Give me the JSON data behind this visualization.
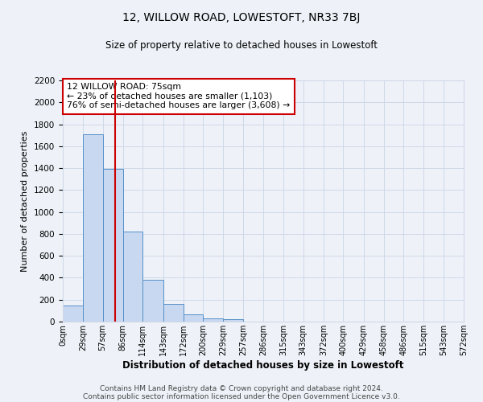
{
  "title": "12, WILLOW ROAD, LOWESTOFT, NR33 7BJ",
  "subtitle": "Size of property relative to detached houses in Lowestoft",
  "xlabel": "Distribution of detached houses by size in Lowestoft",
  "ylabel": "Number of detached properties",
  "bin_edges": [
    0,
    29,
    57,
    86,
    114,
    143,
    172,
    200,
    229,
    257,
    286,
    315,
    343,
    372,
    400,
    429,
    458,
    486,
    515,
    543,
    572
  ],
  "bar_heights": [
    150,
    1710,
    1390,
    820,
    385,
    160,
    65,
    30,
    20,
    0,
    0,
    0,
    0,
    0,
    0,
    0,
    0,
    0,
    0,
    0
  ],
  "tick_labels": [
    "0sqm",
    "29sqm",
    "57sqm",
    "86sqm",
    "114sqm",
    "143sqm",
    "172sqm",
    "200sqm",
    "229sqm",
    "257sqm",
    "286sqm",
    "315sqm",
    "343sqm",
    "372sqm",
    "400sqm",
    "429sqm",
    "458sqm",
    "486sqm",
    "515sqm",
    "543sqm",
    "572sqm"
  ],
  "bar_color": "#c8d8f0",
  "bar_edge_color": "#5590c8",
  "grid_color": "#d0d8e8",
  "background_color": "#eef2f8",
  "property_line_x": 75,
  "property_line_color": "#cc0000",
  "annotation_line1": "12 WILLOW ROAD: 75sqm",
  "annotation_line2": "← 23% of detached houses are smaller (1,103)",
  "annotation_line3": "76% of semi-detached houses are larger (3,608) →",
  "annotation_box_color": "#ffffff",
  "annotation_box_edge": "#cc0000",
  "ylim": [
    0,
    2200
  ],
  "yticks": [
    0,
    200,
    400,
    600,
    800,
    1000,
    1200,
    1400,
    1600,
    1800,
    2000,
    2200
  ],
  "footer1": "Contains HM Land Registry data © Crown copyright and database right 2024.",
  "footer2": "Contains public sector information licensed under the Open Government Licence v3.0."
}
